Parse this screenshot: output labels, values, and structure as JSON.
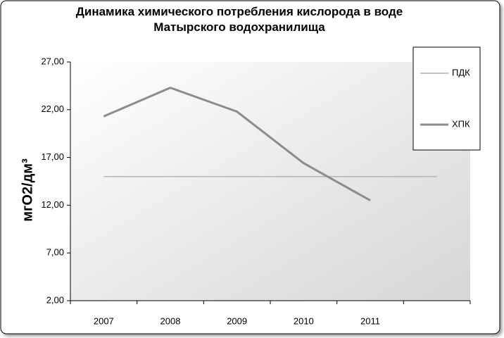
{
  "chart_data": {
    "type": "line",
    "title": "Динамика химического потребления кислорода в воде Матырского водохранилища",
    "y_label": "мгО2/дм³",
    "categories": [
      "2007",
      "2008",
      "2009",
      "2010",
      "2011",
      null
    ],
    "series": [
      {
        "name": "ПДК",
        "color": "#b4b4b4",
        "values": [
          15,
          15,
          15,
          15,
          15,
          15
        ]
      },
      {
        "name": "ХПК",
        "color": "#8c8c8c",
        "values": [
          21.3,
          24.3,
          21.8,
          16.4,
          12.5,
          null
        ]
      }
    ],
    "ylim": [
      2,
      27
    ],
    "yticks": [
      {
        "value": 2,
        "label": "2,00"
      },
      {
        "value": 7,
        "label": "7,00"
      },
      {
        "value": 12,
        "label": "12,00"
      },
      {
        "value": 17,
        "label": "17,00"
      },
      {
        "value": 22,
        "label": "22,00"
      },
      {
        "value": 27,
        "label": "27,00"
      }
    ],
    "grid": false,
    "legend": "right"
  }
}
